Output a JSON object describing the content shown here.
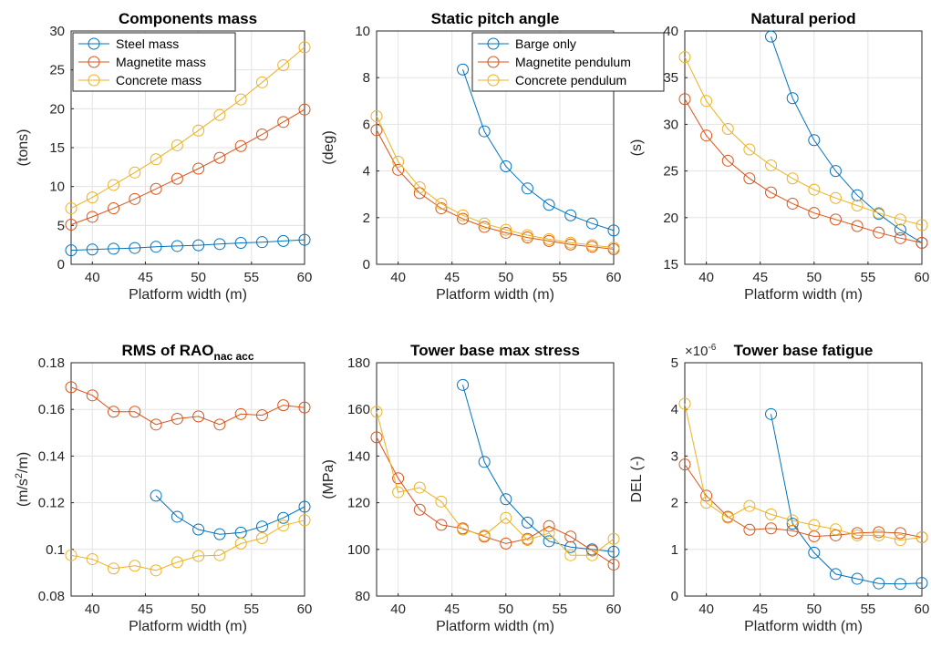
{
  "colors": {
    "steel_barge": "#0072BD",
    "magnetite": "#D95319",
    "concrete": "#EDB120"
  },
  "chart_data": [
    {
      "type": "line",
      "title": "Components mass",
      "xlabel": "Platform width (m)",
      "ylabel": "(tons)",
      "xlim": [
        38,
        60
      ],
      "ylim": [
        0,
        30
      ],
      "xticks": [
        40,
        45,
        50,
        55,
        60
      ],
      "yticks": [
        0,
        5,
        10,
        15,
        20,
        25,
        30
      ],
      "grid": true,
      "legend": "top-left",
      "series": [
        {
          "name": "Steel mass",
          "color": "#0072BD",
          "x": [
            38,
            40,
            42,
            44,
            46,
            48,
            50,
            52,
            54,
            56,
            58,
            60
          ],
          "y": [
            1.8,
            1.9,
            2.0,
            2.1,
            2.25,
            2.35,
            2.45,
            2.6,
            2.75,
            2.85,
            3.0,
            3.15
          ]
        },
        {
          "name": "Magnetite mass",
          "color": "#D95319",
          "x": [
            38,
            40,
            42,
            44,
            46,
            48,
            50,
            52,
            54,
            56,
            58,
            60
          ],
          "y": [
            5.1,
            6.1,
            7.2,
            8.4,
            9.7,
            11.0,
            12.3,
            13.7,
            15.2,
            16.7,
            18.3,
            19.9
          ]
        },
        {
          "name": "Concrete mass",
          "color": "#EDB120",
          "x": [
            38,
            40,
            42,
            44,
            46,
            48,
            50,
            52,
            54,
            56,
            58,
            60
          ],
          "y": [
            7.2,
            8.6,
            10.2,
            11.8,
            13.5,
            15.3,
            17.2,
            19.2,
            21.2,
            23.4,
            25.6,
            27.9
          ]
        }
      ]
    },
    {
      "type": "line",
      "title": "Static pitch angle",
      "xlabel": "Platform width (m)",
      "ylabel": "(deg)",
      "xlim": [
        38,
        60
      ],
      "ylim": [
        0,
        10
      ],
      "xticks": [
        40,
        45,
        50,
        55,
        60
      ],
      "yticks": [
        0,
        2,
        4,
        6,
        8,
        10
      ],
      "grid": true,
      "legend": "top-right",
      "series": [
        {
          "name": "Barge only",
          "color": "#0072BD",
          "x": [
            46,
            48,
            50,
            52,
            54,
            56,
            58,
            60
          ],
          "y": [
            8.35,
            5.7,
            4.2,
            3.25,
            2.55,
            2.1,
            1.75,
            1.45
          ]
        },
        {
          "name": "Magnetite pendulum",
          "color": "#D95319",
          "x": [
            38,
            40,
            42,
            44,
            46,
            48,
            50,
            52,
            54,
            56,
            58,
            60
          ],
          "y": [
            5.75,
            4.05,
            3.05,
            2.4,
            1.95,
            1.6,
            1.35,
            1.15,
            1.0,
            0.85,
            0.75,
            0.65
          ]
        },
        {
          "name": "Concrete pendulum",
          "color": "#EDB120",
          "x": [
            38,
            40,
            42,
            44,
            46,
            48,
            50,
            52,
            54,
            56,
            58,
            60
          ],
          "y": [
            6.35,
            4.4,
            3.3,
            2.6,
            2.1,
            1.75,
            1.48,
            1.25,
            1.08,
            0.93,
            0.82,
            0.72
          ]
        }
      ]
    },
    {
      "type": "line",
      "title": "Natural period",
      "xlabel": "Platform width (m)",
      "ylabel": "(s)",
      "xlim": [
        38,
        60
      ],
      "ylim": [
        15,
        40
      ],
      "xticks": [
        40,
        45,
        50,
        55,
        60
      ],
      "yticks": [
        15,
        20,
        25,
        30,
        35,
        40
      ],
      "grid": true,
      "series": [
        {
          "color": "#0072BD",
          "x": [
            46,
            48,
            50,
            52,
            54,
            56,
            58,
            60
          ],
          "y": [
            39.4,
            32.8,
            28.3,
            25.0,
            22.4,
            20.4,
            18.7,
            17.3
          ]
        },
        {
          "color": "#D95319",
          "x": [
            38,
            40,
            42,
            44,
            46,
            48,
            50,
            52,
            54,
            56,
            58,
            60
          ],
          "y": [
            32.7,
            28.8,
            26.1,
            24.2,
            22.7,
            21.5,
            20.5,
            19.8,
            19.1,
            18.4,
            17.8,
            17.3
          ]
        },
        {
          "color": "#EDB120",
          "x": [
            38,
            40,
            42,
            44,
            46,
            48,
            50,
            52,
            54,
            56,
            58,
            60
          ],
          "y": [
            37.2,
            32.5,
            29.5,
            27.3,
            25.6,
            24.2,
            23.0,
            22.1,
            21.3,
            20.5,
            19.8,
            19.2
          ]
        }
      ]
    },
    {
      "type": "line",
      "title": "RMS of RAO",
      "title_sub": "nac acc",
      "xlabel": "Platform width (m)",
      "ylabel": "(m/s",
      "ylabel_sup": "2",
      "ylabel_end": "/m)",
      "xlim": [
        38,
        60
      ],
      "ylim": [
        0.08,
        0.18
      ],
      "xticks": [
        40,
        45,
        50,
        55,
        60
      ],
      "yticks": [
        0.08,
        0.1,
        0.12,
        0.14,
        0.16,
        0.18
      ],
      "yticklabels": [
        "0.08",
        "0.1",
        "0.12",
        "0.14",
        "0.16",
        "0.18"
      ],
      "grid": true,
      "series": [
        {
          "color": "#0072BD",
          "x": [
            46,
            48,
            50,
            52,
            54,
            56,
            58,
            60
          ],
          "y": [
            0.123,
            0.114,
            0.1085,
            0.1065,
            0.1072,
            0.1098,
            0.1135,
            0.1183
          ]
        },
        {
          "color": "#D95319",
          "x": [
            38,
            40,
            42,
            44,
            46,
            48,
            50,
            52,
            54,
            56,
            58,
            60
          ],
          "y": [
            0.1695,
            0.166,
            0.159,
            0.159,
            0.1535,
            0.156,
            0.157,
            0.1535,
            0.158,
            0.1575,
            0.1618,
            0.1608
          ]
        },
        {
          "color": "#EDB120",
          "x": [
            38,
            40,
            42,
            44,
            46,
            48,
            50,
            52,
            54,
            56,
            58,
            60
          ],
          "y": [
            0.0975,
            0.0958,
            0.0918,
            0.093,
            0.091,
            0.0945,
            0.0972,
            0.0975,
            0.1025,
            0.1048,
            0.1102,
            0.1125
          ]
        }
      ]
    },
    {
      "type": "line",
      "title": "Tower base max stress",
      "xlabel": "Platform width (m)",
      "ylabel": "(MPa)",
      "xlim": [
        38,
        60
      ],
      "ylim": [
        80,
        180
      ],
      "xticks": [
        40,
        45,
        50,
        55,
        60
      ],
      "yticks": [
        80,
        100,
        120,
        140,
        160,
        180
      ],
      "grid": true,
      "series": [
        {
          "color": "#0072BD",
          "x": [
            46,
            48,
            50,
            52,
            54,
            56,
            58,
            60
          ],
          "y": [
            170.5,
            137.5,
            121.5,
            111.5,
            103.5,
            101.0,
            100.0,
            99.0
          ]
        },
        {
          "color": "#D95319",
          "x": [
            38,
            40,
            42,
            44,
            46,
            48,
            50,
            52,
            54,
            56,
            58,
            60
          ],
          "y": [
            148,
            130.5,
            117,
            110.5,
            109,
            105.5,
            102.5,
            104.5,
            110,
            105.5,
            99.5,
            93.5
          ]
        },
        {
          "color": "#EDB120",
          "x": [
            38,
            40,
            42,
            44,
            46,
            48,
            50,
            52,
            54,
            56,
            58,
            60
          ],
          "y": [
            159,
            124.5,
            126.5,
            120.5,
            108.5,
            106,
            113.5,
            104,
            107,
            97.5,
            97.5,
            104.5
          ]
        }
      ]
    },
    {
      "type": "line",
      "title": "Tower base fatigue",
      "xlabel": "Platform width (m)",
      "ylabel": "DEL (-)",
      "exponent": "×10",
      "exponent_power": "-6",
      "xlim": [
        38,
        60
      ],
      "ylim": [
        0,
        5
      ],
      "xticks": [
        40,
        45,
        50,
        55,
        60
      ],
      "yticks": [
        0,
        1,
        2,
        3,
        4,
        5
      ],
      "grid": true,
      "series": [
        {
          "color": "#0072BD",
          "x": [
            46,
            48,
            50,
            52,
            54,
            56,
            58,
            60
          ],
          "y": [
            3.9,
            1.55,
            0.93,
            0.47,
            0.37,
            0.27,
            0.26,
            0.28
          ]
        },
        {
          "color": "#D95319",
          "x": [
            38,
            40,
            42,
            44,
            46,
            48,
            50,
            52,
            54,
            56,
            58,
            60
          ],
          "y": [
            2.82,
            2.15,
            1.7,
            1.42,
            1.45,
            1.4,
            1.28,
            1.3,
            1.35,
            1.37,
            1.35,
            1.26
          ]
        },
        {
          "color": "#EDB120",
          "x": [
            38,
            40,
            42,
            44,
            46,
            48,
            50,
            52,
            54,
            56,
            58,
            60
          ],
          "y": [
            4.12,
            2.0,
            1.68,
            1.93,
            1.75,
            1.62,
            1.52,
            1.43,
            1.3,
            1.3,
            1.2,
            1.26
          ]
        }
      ]
    }
  ]
}
